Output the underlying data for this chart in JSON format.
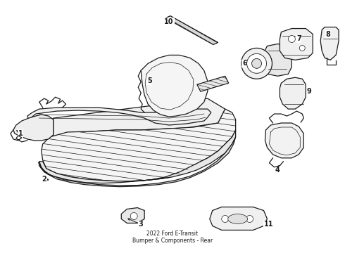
{
  "title": "2022 Ford E-Transit\nBumper & Components - Rear",
  "bg_color": "#ffffff",
  "line_color": "#1a1a1a",
  "line_width": 0.9,
  "fig_width": 4.9,
  "fig_height": 3.6,
  "dpi": 100
}
